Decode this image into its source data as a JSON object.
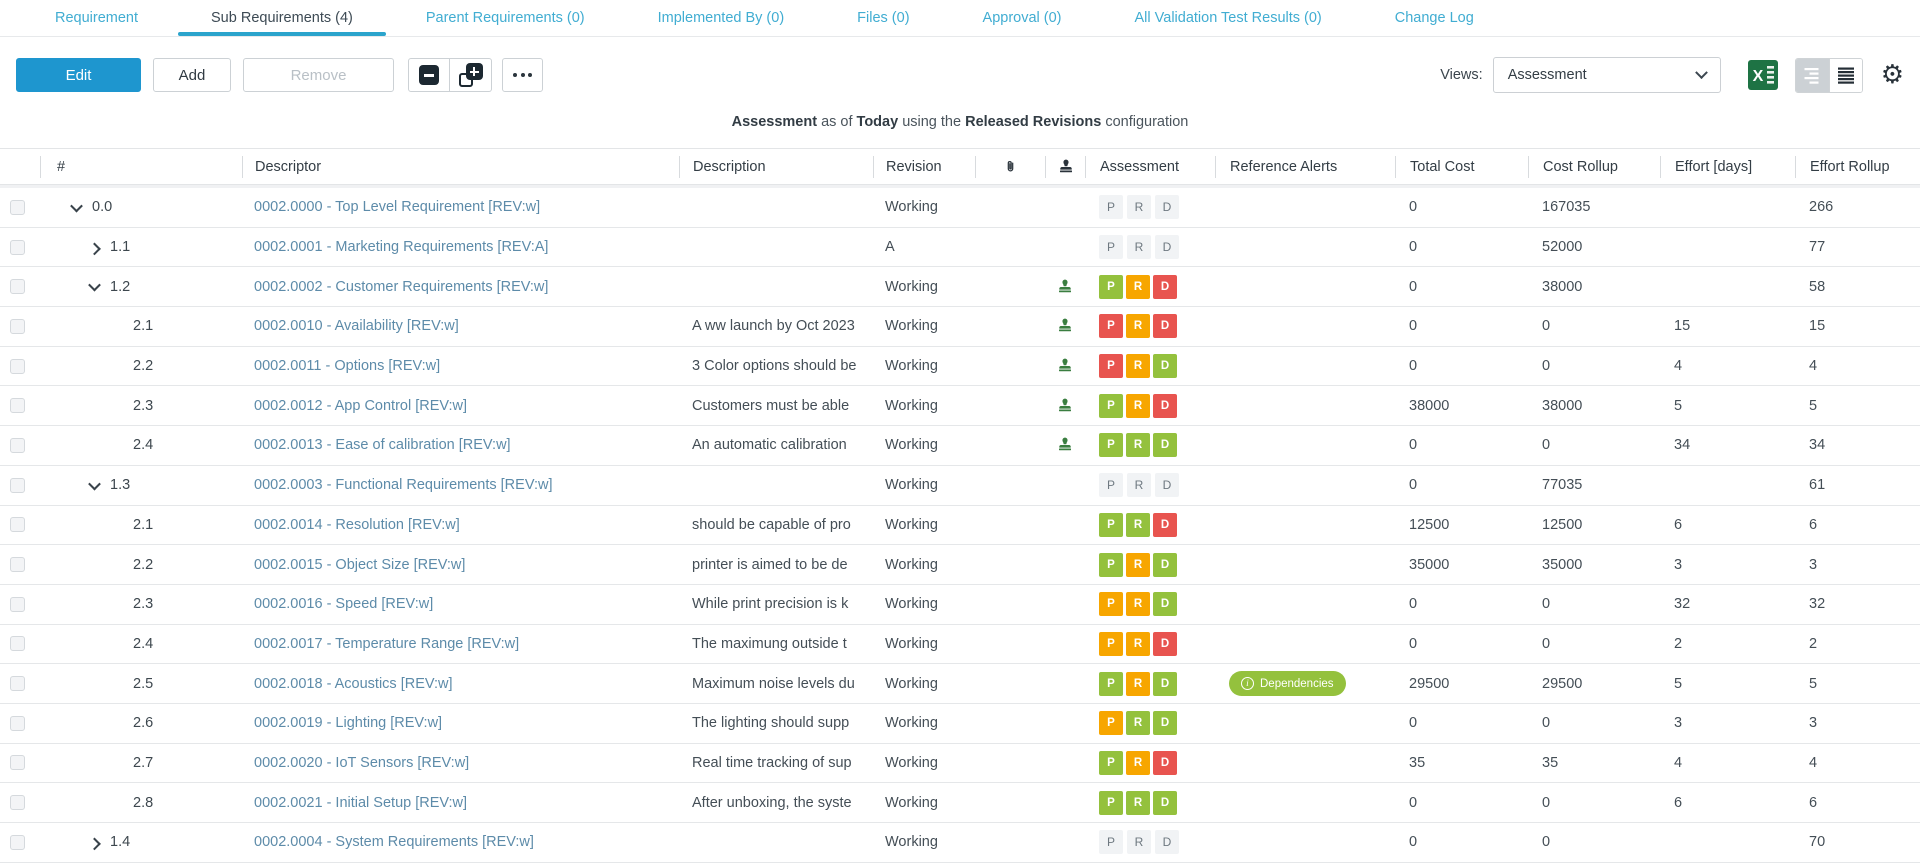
{
  "colors": {
    "green": "#94c13d",
    "orange": "#f7a600",
    "red": "#e8544f",
    "accent_blue": "#1e96cf",
    "tab_blue": "#41add2",
    "underline_blue": "#2ba4cc",
    "link_blue": "#5d8ba9",
    "excel_green": "#1e7344",
    "stamp_green": "#3a7e40",
    "header_icon_dark": "#2a333b",
    "pill_green": "#94c13d"
  },
  "tabs": [
    {
      "id": "requirement",
      "label": "Requirement",
      "active": false
    },
    {
      "id": "sub-requirements",
      "label": "Sub Requirements (4)",
      "active": true
    },
    {
      "id": "parent-requirements",
      "label": "Parent Requirements (0)",
      "active": false
    },
    {
      "id": "implemented-by",
      "label": "Implemented By (0)",
      "active": false
    },
    {
      "id": "files",
      "label": "Files (0)",
      "active": false
    },
    {
      "id": "approval",
      "label": "Approval (0)",
      "active": false
    },
    {
      "id": "all-validation-test-results",
      "label": "All Validation Test Results (0)",
      "active": false
    },
    {
      "id": "change-log",
      "label": "Change Log",
      "active": false
    }
  ],
  "toolbar": {
    "edit_label": "Edit",
    "add_label": "Add",
    "remove_label": "Remove",
    "collapse_icon": "collapse-all-icon",
    "expand_icon": "expand-all-icon",
    "more_icon": "more-options-icon",
    "views_label": "Views:",
    "views_value": "Assessment",
    "excel_icon": "excel-export-icon",
    "view_mode_icons": [
      "summary-view-icon",
      "list-view-icon"
    ],
    "gear_icon": "gear-icon",
    "gear_glyph": "⚙"
  },
  "status_line": {
    "segments": [
      {
        "text": "Assessment",
        "bold": true
      },
      {
        "text": " as of ",
        "bold": false
      },
      {
        "text": "Today",
        "bold": true
      },
      {
        "text": " using the ",
        "bold": false
      },
      {
        "text": "Released Revisions",
        "bold": true
      },
      {
        "text": " configuration",
        "bold": false
      }
    ]
  },
  "table": {
    "assessment_letters": [
      "P",
      "R",
      "D"
    ],
    "alert_info_glyph": "i",
    "columns": [
      {
        "id": "check",
        "label": ""
      },
      {
        "id": "num",
        "label": "#"
      },
      {
        "id": "descriptor",
        "label": "Descriptor"
      },
      {
        "id": "description",
        "label": "Description"
      },
      {
        "id": "revision",
        "label": "Revision"
      },
      {
        "id": "attach",
        "icon": "paperclip-icon"
      },
      {
        "id": "stamp",
        "icon": "stamp-icon"
      },
      {
        "id": "assessment",
        "label": "Assessment"
      },
      {
        "id": "alerts",
        "label": "Reference Alerts"
      },
      {
        "id": "totalcost",
        "label": "Total Cost"
      },
      {
        "id": "costrollup",
        "label": "Cost Rollup"
      },
      {
        "id": "effort",
        "label": "Effort [days]"
      },
      {
        "id": "effortrollup",
        "label": "Effort Rollup"
      }
    ],
    "rows": [
      {
        "num": "0.0",
        "level": 0,
        "expander": "down",
        "descriptor": "0002.0000 - Top Level Requirement [REV:w]",
        "description": "",
        "revision": "Working",
        "stamp": false,
        "assessment": null,
        "alert": null,
        "total_cost": "0",
        "cost_rollup": "167035",
        "effort": "",
        "effort_rollup": "266"
      },
      {
        "num": "1.1",
        "level": 1,
        "expander": "right",
        "descriptor": "0002.0001 - Marketing Requirements [REV:A]",
        "description": "",
        "revision": "A",
        "stamp": false,
        "assessment": null,
        "alert": null,
        "total_cost": "0",
        "cost_rollup": "52000",
        "effort": "",
        "effort_rollup": "77"
      },
      {
        "num": "1.2",
        "level": 1,
        "expander": "down",
        "descriptor": "0002.0002 - Customer Requirements [REV:w]",
        "description": "",
        "revision": "Working",
        "stamp": true,
        "assessment": [
          "green",
          "orange",
          "red"
        ],
        "alert": null,
        "total_cost": "0",
        "cost_rollup": "38000",
        "effort": "",
        "effort_rollup": "58"
      },
      {
        "num": "2.1",
        "level": 2,
        "expander": null,
        "descriptor": "0002.0010 - Availability [REV:w]",
        "description": "A ww launch by Oct 2023",
        "revision": "Working",
        "stamp": true,
        "assessment": [
          "red",
          "orange",
          "red"
        ],
        "alert": null,
        "total_cost": "0",
        "cost_rollup": "0",
        "effort": "15",
        "effort_rollup": "15"
      },
      {
        "num": "2.2",
        "level": 2,
        "expander": null,
        "descriptor": "0002.0011 - Options [REV:w]",
        "description": "3 Color options should be",
        "revision": "Working",
        "stamp": true,
        "assessment": [
          "red",
          "orange",
          "green"
        ],
        "alert": null,
        "total_cost": "0",
        "cost_rollup": "0",
        "effort": "4",
        "effort_rollup": "4"
      },
      {
        "num": "2.3",
        "level": 2,
        "expander": null,
        "descriptor": "0002.0012 - App Control [REV:w]",
        "description": "Customers must be able",
        "revision": "Working",
        "stamp": true,
        "assessment": [
          "green",
          "orange",
          "red"
        ],
        "alert": null,
        "total_cost": "38000",
        "cost_rollup": "38000",
        "effort": "5",
        "effort_rollup": "5"
      },
      {
        "num": "2.4",
        "level": 2,
        "expander": null,
        "descriptor": "0002.0013 - Ease of calibration [REV:w]",
        "description": "An automatic calibration",
        "revision": "Working",
        "stamp": true,
        "assessment": [
          "green",
          "green",
          "green"
        ],
        "alert": null,
        "total_cost": "0",
        "cost_rollup": "0",
        "effort": "34",
        "effort_rollup": "34"
      },
      {
        "num": "1.3",
        "level": 1,
        "expander": "down",
        "descriptor": "0002.0003 - Functional Requirements [REV:w]",
        "description": "",
        "revision": "Working",
        "stamp": false,
        "assessment": null,
        "alert": null,
        "total_cost": "0",
        "cost_rollup": "77035",
        "effort": "",
        "effort_rollup": "61"
      },
      {
        "num": "2.1",
        "level": 2,
        "expander": null,
        "descriptor": "0002.0014 - Resolution [REV:w]",
        "description": "should be capable of pro",
        "revision": "Working",
        "stamp": false,
        "assessment": [
          "green",
          "green",
          "red"
        ],
        "alert": null,
        "total_cost": "12500",
        "cost_rollup": "12500",
        "effort": "6",
        "effort_rollup": "6"
      },
      {
        "num": "2.2",
        "level": 2,
        "expander": null,
        "descriptor": "0002.0015 - Object Size [REV:w]",
        "description": "printer  is aimed to be de",
        "revision": "Working",
        "stamp": false,
        "assessment": [
          "green",
          "orange",
          "green"
        ],
        "alert": null,
        "total_cost": "35000",
        "cost_rollup": "35000",
        "effort": "3",
        "effort_rollup": "3"
      },
      {
        "num": "2.3",
        "level": 2,
        "expander": null,
        "descriptor": "0002.0016 - Speed [REV:w]",
        "description": "While print precision is k",
        "revision": "Working",
        "stamp": false,
        "assessment": [
          "orange",
          "orange",
          "green"
        ],
        "alert": null,
        "total_cost": "0",
        "cost_rollup": "0",
        "effort": "32",
        "effort_rollup": "32"
      },
      {
        "num": "2.4",
        "level": 2,
        "expander": null,
        "descriptor": "0002.0017 - Temperature Range [REV:w]",
        "description": "The maximung outside t",
        "revision": "Working",
        "stamp": false,
        "assessment": [
          "orange",
          "orange",
          "red"
        ],
        "alert": null,
        "total_cost": "0",
        "cost_rollup": "0",
        "effort": "2",
        "effort_rollup": "2"
      },
      {
        "num": "2.5",
        "level": 2,
        "expander": null,
        "descriptor": "0002.0018 - Acoustics [REV:w]",
        "description": "Maximum noise levels du",
        "revision": "Working",
        "stamp": false,
        "assessment": [
          "green",
          "orange",
          "green"
        ],
        "alert": "Dependencies",
        "total_cost": "29500",
        "cost_rollup": "29500",
        "effort": "5",
        "effort_rollup": "5"
      },
      {
        "num": "2.6",
        "level": 2,
        "expander": null,
        "descriptor": "0002.0019 - Lighting [REV:w]",
        "description": "The lighting should supp",
        "revision": "Working",
        "stamp": false,
        "assessment": [
          "orange",
          "green",
          "green"
        ],
        "alert": null,
        "total_cost": "0",
        "cost_rollup": "0",
        "effort": "3",
        "effort_rollup": "3"
      },
      {
        "num": "2.7",
        "level": 2,
        "expander": null,
        "descriptor": "0002.0020 - IoT Sensors [REV:w]",
        "description": "Real time tracking of sup",
        "revision": "Working",
        "stamp": false,
        "assessment": [
          "green",
          "orange",
          "red"
        ],
        "alert": null,
        "total_cost": "35",
        "cost_rollup": "35",
        "effort": "4",
        "effort_rollup": "4"
      },
      {
        "num": "2.8",
        "level": 2,
        "expander": null,
        "descriptor": "0002.0021 - Initial Setup [REV:w]",
        "description": "After unboxing, the syste",
        "revision": "Working",
        "stamp": false,
        "assessment": [
          "green",
          "green",
          "green"
        ],
        "alert": null,
        "total_cost": "0",
        "cost_rollup": "0",
        "effort": "6",
        "effort_rollup": "6"
      },
      {
        "num": "1.4",
        "level": 1,
        "expander": "right",
        "descriptor": "0002.0004 - System Requirements [REV:w]",
        "description": "",
        "revision": "Working",
        "stamp": false,
        "assessment": null,
        "alert": null,
        "total_cost": "0",
        "cost_rollup": "0",
        "effort": "",
        "effort_rollup": "70"
      }
    ]
  }
}
